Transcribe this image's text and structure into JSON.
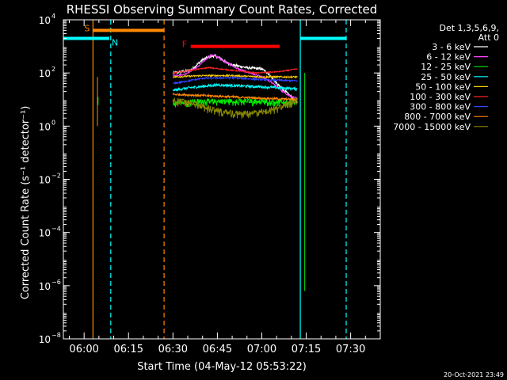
{
  "chart_data": {
    "type": "line",
    "title": "RHESSI Observing Summary Count Rates, Corrected",
    "xlabel": "Start Time (04-May-12 05:53:22)",
    "ylabel": "Corrected Count Rate (s⁻¹ detector⁻¹)",
    "ylog": true,
    "ylim_exp": [
      -8,
      4
    ],
    "xlim_min": [
      -7,
      100
    ],
    "x_ticks": [
      {
        "label": "06:00",
        "min": 0
      },
      {
        "label": "06:15",
        "min": 15
      },
      {
        "label": "06:30",
        "min": 30
      },
      {
        "label": "06:45",
        "min": 45
      },
      {
        "label": "07:00",
        "min": 60
      },
      {
        "label": "07:15",
        "min": 75
      },
      {
        "label": "07:30",
        "min": 90
      }
    ],
    "y_ticks_exp": [
      -8,
      -6,
      -4,
      -2,
      0,
      2,
      4
    ],
    "legend": {
      "placement": "right",
      "header": [
        "Det 1,3,5,6,9,",
        "Att 0"
      ],
      "items": [
        {
          "label": "3 - 6 keV",
          "color": "#ffffff"
        },
        {
          "label": "6 - 12 keV",
          "color": "#ff44ff"
        },
        {
          "label": "12 - 25 keV",
          "color": "#00ee00"
        },
        {
          "label": "25 - 50 keV",
          "color": "#00ffff"
        },
        {
          "label": "50 - 100 keV",
          "color": "#ffcc00"
        },
        {
          "label": "100 - 300 keV",
          "color": "#ff2222"
        },
        {
          "label": "300 - 800 keV",
          "color": "#3344ff"
        },
        {
          "label": "800 - 7000 keV",
          "color": "#ff8800"
        },
        {
          "label": "7000 - 15000 keV",
          "color": "#888800"
        }
      ]
    },
    "intervals": [
      {
        "label": "S",
        "color": "#ff8800",
        "start_min": 3,
        "end_min": 27,
        "level_exp": 3.6
      },
      {
        "label": "N",
        "color": "#00ffff",
        "start_min": -7,
        "end_min": 8.5,
        "level_exp": 3.3
      },
      {
        "label": "",
        "color": "#00ffff",
        "start_min": 73,
        "end_min": 88.5,
        "level_exp": 3.3
      },
      {
        "label": "F",
        "color": "#ff0000",
        "start_min": 36,
        "end_min": 66,
        "level_exp": 3.0
      }
    ],
    "vlines": [
      {
        "min": 3,
        "color": "#ff8800",
        "dashed": false
      },
      {
        "min": 9,
        "color": "#00ffff",
        "dashed": true
      },
      {
        "min": 27,
        "color": "#ff8800",
        "dashed": true
      },
      {
        "min": 73,
        "color": "#00ffff",
        "dashed": false
      },
      {
        "min": 88.5,
        "color": "#00ffff",
        "dashed": true
      }
    ],
    "series": [
      {
        "name": "3 - 6 keV",
        "color": "#ffffff",
        "noise": 0.05,
        "points": [
          [
            30,
            2.0
          ],
          [
            33,
            2.05
          ],
          [
            36,
            2.1
          ],
          [
            38,
            2.3
          ],
          [
            40,
            2.5
          ],
          [
            42,
            2.6
          ],
          [
            44,
            2.65
          ],
          [
            46,
            2.55
          ],
          [
            48,
            2.4
          ],
          [
            50,
            2.3
          ],
          [
            55,
            2.2
          ],
          [
            60,
            2.15
          ],
          [
            62,
            2.0
          ],
          [
            65,
            1.6
          ],
          [
            68,
            1.3
          ],
          [
            70,
            1.1
          ],
          [
            71,
            1.0
          ],
          [
            72,
            0.9
          ]
        ]
      },
      {
        "name": "6 - 12 keV",
        "color": "#ff44ff",
        "noise": 0.03,
        "points": [
          [
            30,
            1.9
          ],
          [
            34,
            1.95
          ],
          [
            38,
            2.2
          ],
          [
            41,
            2.5
          ],
          [
            43,
            2.68
          ],
          [
            45,
            2.6
          ],
          [
            48,
            2.4
          ],
          [
            52,
            2.15
          ],
          [
            56,
            2.0
          ],
          [
            60,
            1.85
          ],
          [
            64,
            1.6
          ],
          [
            67,
            1.3
          ],
          [
            70,
            1.1
          ],
          [
            72,
            1.05
          ]
        ]
      },
      {
        "name": "12 - 25 keV",
        "color": "#00ee00",
        "noise": 0.08,
        "points": [
          [
            30,
            0.9
          ],
          [
            40,
            0.95
          ],
          [
            50,
            0.95
          ],
          [
            60,
            0.95
          ],
          [
            72,
            0.9
          ]
        ]
      },
      {
        "name": "25 - 50 keV",
        "color": "#00ffff",
        "noise": 0.05,
        "points": [
          [
            30,
            1.35
          ],
          [
            36,
            1.45
          ],
          [
            45,
            1.55
          ],
          [
            55,
            1.5
          ],
          [
            65,
            1.45
          ],
          [
            72,
            1.4
          ]
        ]
      },
      {
        "name": "50 - 100 keV",
        "color": "#ffcc00",
        "noise": 0.03,
        "points": [
          [
            30,
            1.85
          ],
          [
            40,
            1.9
          ],
          [
            50,
            1.9
          ],
          [
            60,
            1.85
          ],
          [
            72,
            1.85
          ]
        ]
      },
      {
        "name": "100 - 300 keV",
        "color": "#ff2222",
        "noise": 0.02,
        "points": [
          [
            30,
            2.0
          ],
          [
            36,
            2.1
          ],
          [
            42,
            2.2
          ],
          [
            50,
            2.1
          ],
          [
            58,
            2.0
          ],
          [
            66,
            2.05
          ],
          [
            72,
            2.15
          ]
        ]
      },
      {
        "name": "300 - 800 keV",
        "color": "#3344ff",
        "noise": 0.03,
        "points": [
          [
            30,
            1.6
          ],
          [
            40,
            1.8
          ],
          [
            50,
            1.82
          ],
          [
            60,
            1.75
          ],
          [
            72,
            1.7
          ]
        ]
      },
      {
        "name": "800 - 7000 keV",
        "color": "#ff8800",
        "noise": 0.04,
        "points": [
          [
            30,
            1.2
          ],
          [
            40,
            1.15
          ],
          [
            50,
            1.1
          ],
          [
            60,
            1.05
          ],
          [
            72,
            1.0
          ]
        ]
      },
      {
        "name": "7000 - 15000 keV",
        "color": "#888800",
        "noise": 0.09,
        "points": [
          [
            30,
            1.0
          ],
          [
            36,
            0.9
          ],
          [
            40,
            0.75
          ],
          [
            45,
            0.6
          ],
          [
            50,
            0.5
          ],
          [
            55,
            0.5
          ],
          [
            60,
            0.55
          ],
          [
            65,
            0.7
          ],
          [
            70,
            0.9
          ],
          [
            72,
            1.0
          ]
        ]
      }
    ],
    "spikes": [
      {
        "min": 4.5,
        "from_exp": 0.0,
        "to_exp": 1.85,
        "color": "#ff8800"
      },
      {
        "min": 4.7,
        "from_exp": 0.8,
        "to_exp": 1.1,
        "color": "#00ee00"
      },
      {
        "min": 74.5,
        "from_exp": -6.2,
        "to_exp": 2.0,
        "color": "#00ee00"
      }
    ]
  },
  "footer": {
    "timestamp": "20-Oct-2021 23:49"
  }
}
